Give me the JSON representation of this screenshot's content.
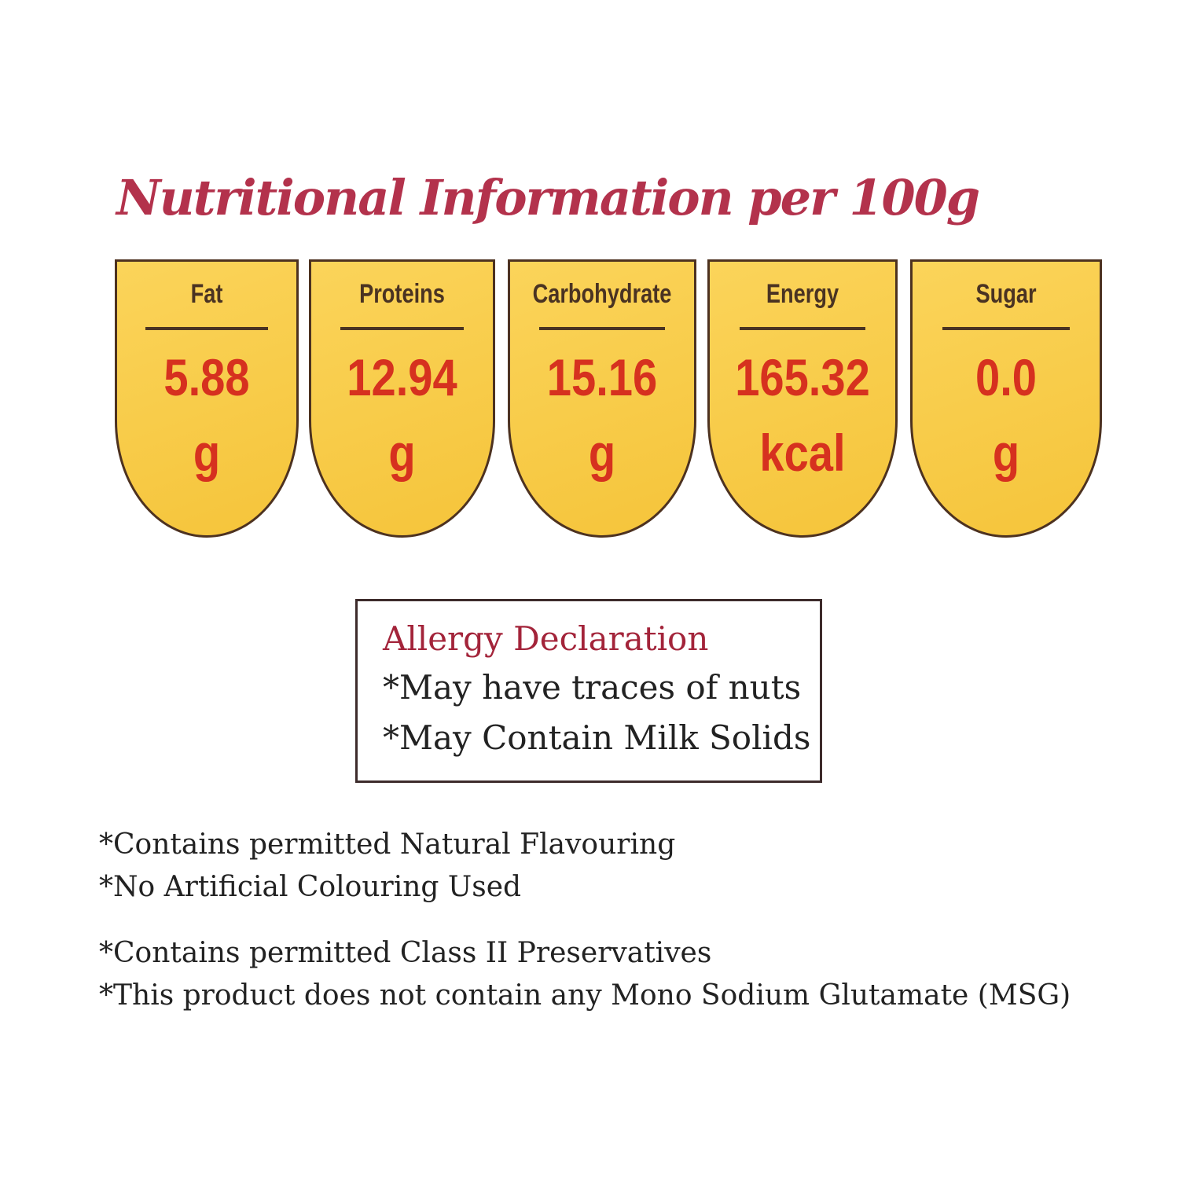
{
  "title": "Nutritional Information per 100g",
  "nutrients": [
    {
      "label": "Fat",
      "value": "5.88",
      "unit": "g"
    },
    {
      "label": "Proteins",
      "value": "12.94",
      "unit": "g"
    },
    {
      "label": "Carbohydrate",
      "value": "15.16",
      "unit": "g"
    },
    {
      "label": "Energy",
      "value": "165.32",
      "unit": "kcal"
    },
    {
      "label": "Sugar",
      "value": "0.0",
      "unit": "g"
    }
  ],
  "allergy": {
    "heading": "Allergy Declaration",
    "lines": [
      "*May have traces of nuts",
      "*May Contain Milk Solids"
    ]
  },
  "notes": [
    "*Contains permitted Natural Flavouring",
    "*No Artificial Colouring Used",
    "*Contains permitted Class II Preservatives",
    "*This product does not contain any Mono Sodium Glutamate (MSG)"
  ],
  "colors": {
    "card_fill": "#f7c740",
    "value_text": "#d6311f",
    "title": "#b3324c",
    "outline": "#4d3220"
  }
}
